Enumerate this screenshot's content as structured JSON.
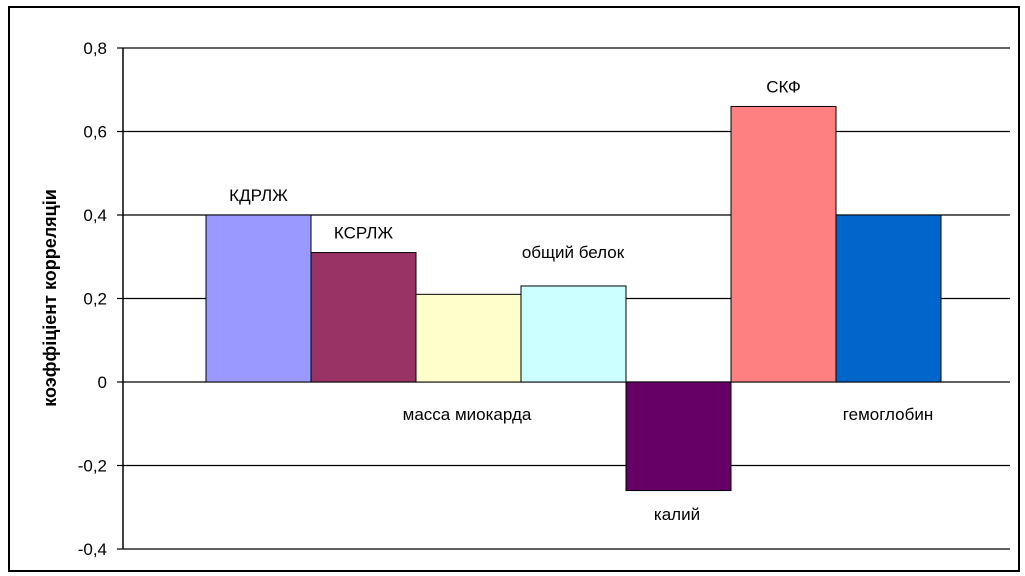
{
  "chart_data": {
    "type": "bar",
    "ylabel": "коэффіціент корреляціи",
    "ylim": [
      -0.4,
      0.8
    ],
    "ytick_labels": [
      "0,8",
      "0,6",
      "0,4",
      "0,2",
      "0",
      "-0,2",
      "-0,4"
    ],
    "yticks": [
      0.8,
      0.6,
      0.4,
      0.2,
      0,
      -0.2,
      -0.4
    ],
    "grid": true,
    "legend": "none",
    "bars": [
      {
        "label": "КДРЛЖ",
        "value": 0.4,
        "color": "#9999ff"
      },
      {
        "label": "КСРЛЖ",
        "value": 0.31,
        "color": "#993366"
      },
      {
        "label": "масса миокарда",
        "value": 0.21,
        "color": "#ffffcc"
      },
      {
        "label": "общий белок",
        "value": 0.23,
        "color": "#ccffff"
      },
      {
        "label": "калий",
        "value": -0.26,
        "color": "#660066"
      },
      {
        "label": "СКФ",
        "value": 0.66,
        "color": "#ff8080"
      },
      {
        "label": "гемоглобин",
        "value": 0.4,
        "color": "#0066cc"
      }
    ]
  }
}
